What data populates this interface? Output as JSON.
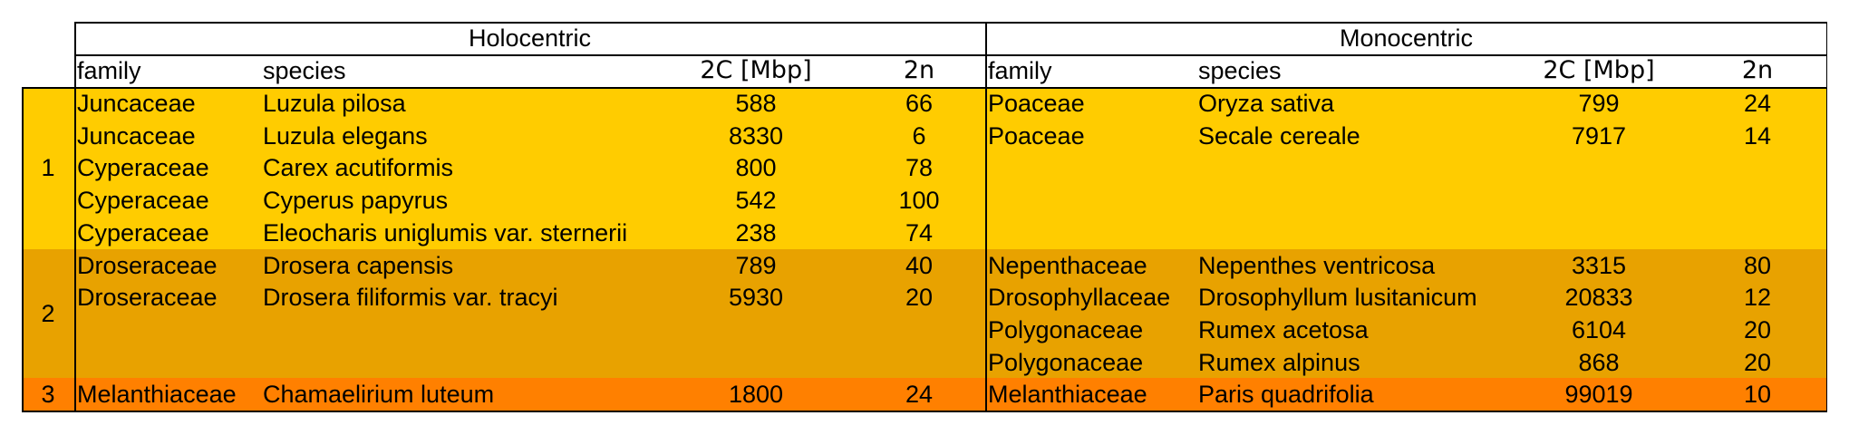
{
  "groups": [
    {
      "label": "Holocentric"
    },
    {
      "label": "Monocentric"
    }
  ],
  "columns": {
    "family": "family",
    "species": "species",
    "genome_size": "2C [Mbp]",
    "chromosomes": "2n"
  },
  "bands": [
    {
      "label": "1",
      "color": "#FFCC00",
      "rows": 5
    },
    {
      "label": "2",
      "color": "#E8A200",
      "rows": 4
    },
    {
      "label": "3",
      "color": "#FF8000",
      "rows": 1
    }
  ],
  "holocentric": [
    [
      "Juncaceae",
      "Luzula pilosa",
      "588",
      "66"
    ],
    [
      "Juncaceae",
      "Luzula elegans",
      "8330",
      "6"
    ],
    [
      "Cyperaceae",
      "Carex acutiformis",
      "800",
      "78"
    ],
    [
      "Cyperaceae",
      "Cyperus papyrus",
      "542",
      "100"
    ],
    [
      "Cyperaceae",
      "Eleocharis uniglumis var. sternerii",
      "238",
      "74"
    ],
    [
      "Droseraceae",
      "Drosera capensis",
      "789",
      "40"
    ],
    [
      "Droseraceae",
      "Drosera filiformis var. tracyi",
      "5930",
      "20"
    ],
    [
      "",
      "",
      "",
      ""
    ],
    [
      "",
      "",
      "",
      ""
    ],
    [
      "Melanthiaceae",
      "Chamaelirium luteum",
      "1800",
      "24"
    ]
  ],
  "monocentric": [
    [
      "Poaceae",
      "Oryza sativa",
      "799",
      "24"
    ],
    [
      "Poaceae",
      "Secale cereale",
      "7917",
      "14"
    ],
    [
      "",
      "",
      "",
      ""
    ],
    [
      "",
      "",
      "",
      ""
    ],
    [
      "",
      "",
      "",
      ""
    ],
    [
      "Nepenthaceae",
      "Nepenthes ventricosa",
      "3315",
      "80"
    ],
    [
      "Drosophyllaceae",
      "Drosophyllum lusitanicum",
      "20833",
      "12"
    ],
    [
      "Polygonaceae",
      "Rumex acetosa",
      "6104",
      "20"
    ],
    [
      "Polygonaceae",
      "Rumex alpinus",
      "868",
      "20"
    ],
    [
      "Melanthiaceae",
      "Paris quadrifolia",
      "99019",
      "10"
    ]
  ]
}
